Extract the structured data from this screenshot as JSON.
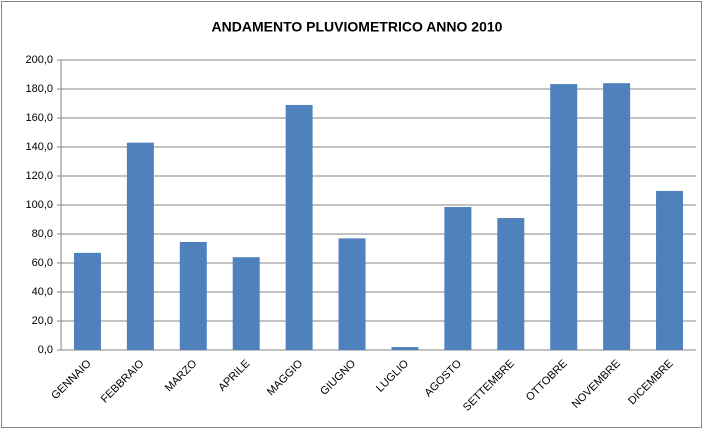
{
  "chart_data": {
    "type": "bar",
    "title": "ANDAMENTO PLUVIOMETRICO ANNO 2010",
    "categories": [
      "GENNAIO",
      "FEBBRAIO",
      "MARZO",
      "APRILE",
      "MAGGIO",
      "GIUGNO",
      "LUGLIO",
      "AGOSTO",
      "SETTEMBRE",
      "OTTOBRE",
      "NOVEMBRE",
      "DICEMBRE"
    ],
    "values": [
      67,
      143,
      74.5,
      64,
      169,
      77,
      2,
      98.6,
      91,
      183.4,
      184,
      109.7
    ],
    "color": "#4f81bd",
    "ylim": [
      0,
      200
    ],
    "yticks": [
      {
        "value": 0,
        "label": "0,0"
      },
      {
        "value": 20,
        "label": "20,0"
      },
      {
        "value": 40,
        "label": "40,0"
      },
      {
        "value": 60,
        "label": "60,0"
      },
      {
        "value": 80,
        "label": "80,0"
      },
      {
        "value": 100,
        "label": "100,0"
      },
      {
        "value": 120,
        "label": "120,0"
      },
      {
        "value": 140,
        "label": "140,0"
      },
      {
        "value": 160,
        "label": "160,0"
      },
      {
        "value": 180,
        "label": "180,0"
      },
      {
        "value": 200,
        "label": "200,0"
      }
    ],
    "grid": true
  }
}
